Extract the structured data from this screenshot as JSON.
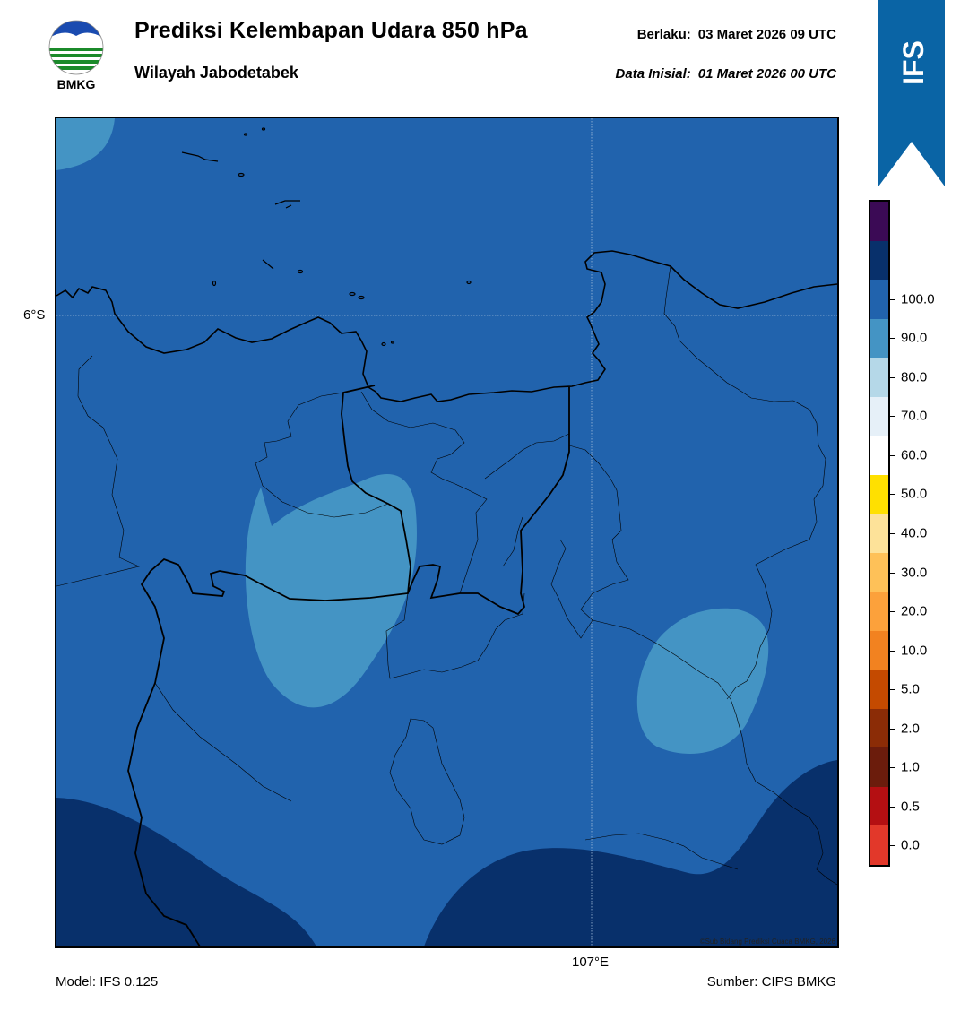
{
  "header": {
    "title": "Prediksi Kelembapan Udara 850 hPa",
    "subtitle": "Wilayah Jabodetabek",
    "valid_label": "Berlaku:",
    "valid_value": "03 Maret 2026 09 UTC",
    "init_label": "Data Inisial:",
    "init_value": "01 Maret 2026 00 UTC"
  },
  "logo": {
    "text": "BMKG",
    "icon": "bmkg-logo-icon"
  },
  "ribbon": {
    "text": "IFS",
    "color": "#0a64a5"
  },
  "axes": {
    "lat_label": "6°S",
    "lon_label": "107°E"
  },
  "footer": {
    "model": "Model: IFS 0.125",
    "source": "Sumber: CIPS BMKG",
    "copyright": "©Sub Bidang Prediksi Cuaca BMKG, 2026"
  },
  "map_colors": {
    "base": "#2163ad",
    "light": "#4494c4",
    "dark": "#08306b",
    "outline": "#000000"
  },
  "colorbar": {
    "segments": [
      "#e2382a",
      "#b40f12",
      "#6b1c0c",
      "#8b2c06",
      "#c44a00",
      "#f28220",
      "#fca13b",
      "#fec158",
      "#fde299",
      "#ffe000",
      "#ffffff",
      "#e6f0f8",
      "#b5d8e8",
      "#4494c4",
      "#2163ad",
      "#08306b",
      "#3b0a55"
    ],
    "labels": [
      "0.0",
      "0.5",
      "1.0",
      "2.0",
      "5.0",
      "10.0",
      "20.0",
      "30.0",
      "40.0",
      "50.0",
      "60.0",
      "70.0",
      "80.0",
      "90.0",
      "100.0"
    ]
  }
}
